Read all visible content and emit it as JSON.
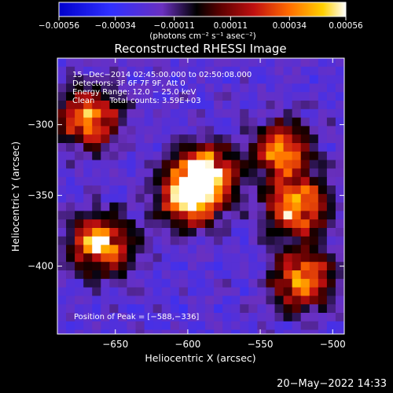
{
  "chart_data": {
    "type": "heatmap",
    "title": "Reconstructed RHESSI Image",
    "xlabel": "Heliocentric X (arcsec)",
    "ylabel": "Heliocentric Y (arcsec)",
    "xlim": [
      -690,
      -492
    ],
    "ylim": [
      -448,
      -253
    ],
    "xticks": [
      -650,
      -600,
      -550,
      -500
    ],
    "yticks": [
      -300,
      -350,
      -400
    ],
    "xtick_labels": [
      "−650",
      "−600",
      "−550",
      "−500"
    ],
    "ytick_labels": [
      "−300",
      "−350",
      "−400"
    ],
    "colorbar": {
      "min": -0.00056,
      "max": 0.00056,
      "ticks": [
        -0.00056,
        -0.00034,
        -0.00011,
        0.00011,
        0.00034,
        0.00056
      ],
      "tick_labels": [
        "−0.00056",
        "−0.00034",
        "−0.00011",
        "0.00011",
        "0.00034",
        "0.00056"
      ],
      "units": "(photons cm⁻² s⁻¹ asec⁻²)"
    },
    "info_lines": [
      "15−Dec−2014 02:45:00.000 to 02:50:08.000",
      "Detectors: 3F 6F 7F 9F, Att 0",
      "Energy Range: 12.0 − 25.0 keV",
      "Clean      Total counts: 3.59E+03"
    ],
    "peak_text": "Position of Peak = [−588,−336]",
    "peak_position": [
      -588,
      -336
    ],
    "sources": [
      {
        "x": -668,
        "y": -295,
        "amp": 0.00042
      },
      {
        "x": -660,
        "y": -385,
        "amp": 0.0005
      },
      {
        "x": -600,
        "y": -352,
        "amp": 0.00044
      },
      {
        "x": -588,
        "y": -336,
        "amp": 0.00056
      },
      {
        "x": -535,
        "y": -318,
        "amp": 0.00034
      },
      {
        "x": -525,
        "y": -358,
        "amp": 0.00046
      },
      {
        "x": -520,
        "y": -410,
        "amp": 0.0004
      }
    ]
  },
  "timestamp": "20−May−2022 14:33"
}
